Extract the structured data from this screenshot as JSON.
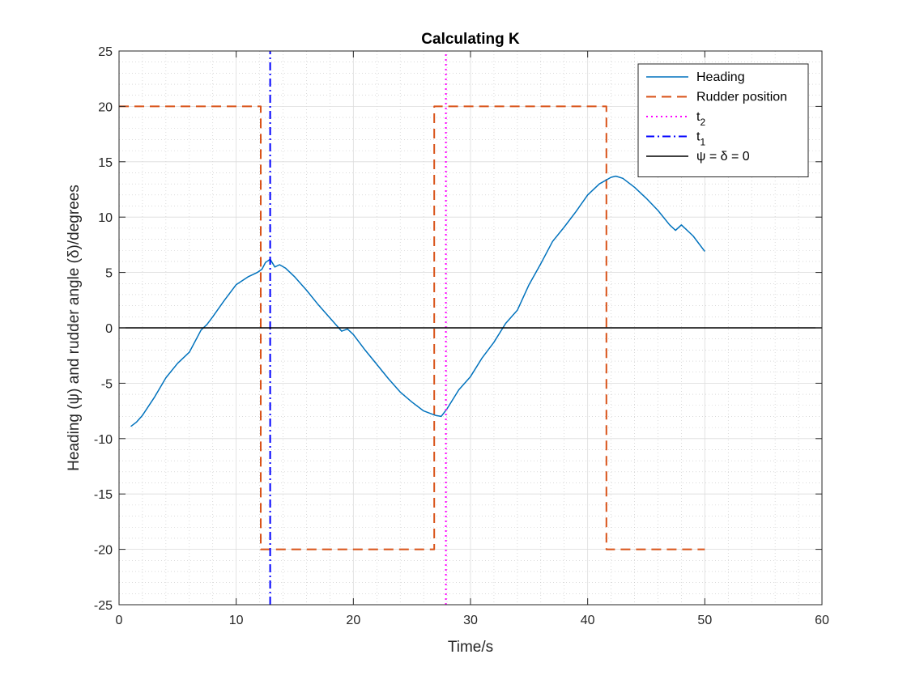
{
  "chart_data": {
    "type": "line",
    "title": "Calculating K",
    "xlabel": "Time/s",
    "ylabel": "Heading (ψ) and rudder angle (δ)/degrees",
    "xlim": [
      0,
      60
    ],
    "ylim": [
      -25,
      25
    ],
    "xticks": [
      0,
      10,
      20,
      30,
      40,
      50,
      60
    ],
    "yticks": [
      -25,
      -20,
      -15,
      -10,
      -5,
      0,
      5,
      10,
      15,
      20,
      25
    ],
    "grid": true,
    "minor_grid": true,
    "legend_position": "top-right",
    "legend": [
      {
        "label": "Heading",
        "sub": "",
        "color": "#0072BD",
        "style": "solid"
      },
      {
        "label": "Rudder position",
        "sub": "",
        "color": "#D95319",
        "style": "dashed"
      },
      {
        "label": "t",
        "sub": "2",
        "color": "#FF00FF",
        "style": "dotted"
      },
      {
        "label": "t",
        "sub": "1",
        "color": "#0000FF",
        "style": "dashdot"
      },
      {
        "label": "ψ = δ = 0",
        "sub": "",
        "color": "#000000",
        "style": "solid"
      }
    ],
    "series": [
      {
        "name": "Heading",
        "color": "#0072BD",
        "style": "solid",
        "x": [
          1,
          1.5,
          2,
          3,
          4,
          5,
          6,
          7,
          7.5,
          8,
          9,
          10,
          11,
          11.8,
          12.2,
          12.5,
          12.9,
          13.3,
          13.7,
          14.2,
          15,
          16,
          17,
          18,
          19,
          19.5,
          20,
          21,
          22,
          23,
          24,
          25,
          26,
          27,
          27.5,
          28,
          29,
          30,
          31,
          32,
          33,
          34,
          35,
          36,
          37,
          38,
          39,
          40,
          41,
          42,
          42.4,
          43,
          44,
          45,
          46,
          47,
          47.5,
          48,
          49,
          50
        ],
        "y": [
          -8.9,
          -8.5,
          -7.9,
          -6.3,
          -4.5,
          -3.2,
          -2.2,
          -0.2,
          0.3,
          1.0,
          2.5,
          3.9,
          4.6,
          5.0,
          5.3,
          5.9,
          6.2,
          5.5,
          5.7,
          5.4,
          4.6,
          3.4,
          2.1,
          0.9,
          -0.3,
          -0.1,
          -0.6,
          -2.0,
          -3.3,
          -4.6,
          -5.8,
          -6.7,
          -7.5,
          -7.9,
          -8.0,
          -7.3,
          -5.6,
          -4.4,
          -2.7,
          -1.3,
          0.4,
          1.6,
          3.9,
          5.8,
          7.8,
          9.1,
          10.5,
          12.0,
          13.0,
          13.6,
          13.7,
          13.5,
          12.7,
          11.7,
          10.6,
          9.3,
          8.8,
          9.3,
          8.3,
          6.9
        ]
      },
      {
        "name": "Rudder position",
        "color": "#D95319",
        "style": "dashed",
        "x": [
          0,
          12.1,
          12.1,
          26.9,
          26.9,
          41.6,
          41.6,
          50
        ],
        "y": [
          20,
          20,
          -20,
          -20,
          20,
          20,
          -20,
          -20
        ]
      },
      {
        "name": "t2",
        "color": "#FF00FF",
        "style": "dotted",
        "x": [
          27.9,
          27.9
        ],
        "y": [
          -25,
          25
        ]
      },
      {
        "name": "t1",
        "color": "#0000FF",
        "style": "dashdot",
        "x": [
          12.9,
          12.9
        ],
        "y": [
          -25,
          25
        ]
      },
      {
        "name": "ψ = δ = 0",
        "color": "#000000",
        "style": "solid",
        "x": [
          0,
          60
        ],
        "y": [
          0,
          0
        ]
      }
    ]
  }
}
